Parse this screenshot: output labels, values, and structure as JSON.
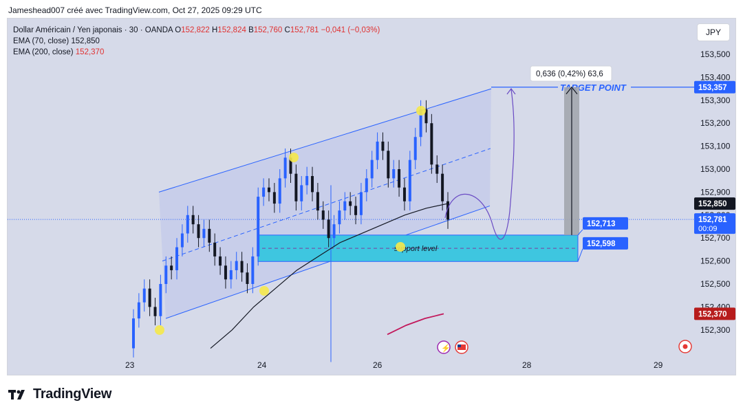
{
  "header": {
    "attribution": "Jameshead007 créé avec TradingView.com, Oct 27, 2025 09:29 UTC"
  },
  "legend": {
    "symbol": "Dollar Américain / Yen japonais · 30 · OANDA",
    "ohlc": {
      "o_label": "O",
      "o": "152,822",
      "h_label": "H",
      "h": "152,824",
      "b_label": "B",
      "b": "152,760",
      "c_label": "C",
      "c": "152,781",
      "change": "−0,041 (−0,03%)"
    },
    "ema70_label": "EMA (70, close)",
    "ema70_value": "152,850",
    "ema200_label": "EMA (200, close)",
    "ema200_value": "152,370"
  },
  "currency_button": "JPY",
  "footer": {
    "brand": "TradingView"
  },
  "colors": {
    "background": "#d6dae9",
    "channel_fill": "#c5cbea",
    "channel_line": "#2962ff",
    "support_zone": "#3ec6e0",
    "candle_up": "#2962ff",
    "candle_down": "#131722",
    "ema70": "#131722",
    "ema200": "#c2185b",
    "marker": "#f5e84a",
    "path": "#6a4bc4"
  },
  "chart_data": {
    "type": "candlestick",
    "symbol": "USDJPY",
    "timeframe": "30",
    "x_ticks": [
      "23",
      "24",
      "26",
      "28",
      "29"
    ],
    "y_ticks": [
      "153,500",
      "153,400",
      "153,300",
      "153,200",
      "153,100",
      "153,000",
      "152,900",
      "152,800",
      "152,700",
      "152,600",
      "152,500",
      "152,400",
      "152,300"
    ],
    "ylim": [
      152.2,
      153.6
    ],
    "candles_close": [
      152.35,
      152.42,
      152.48,
      152.4,
      152.36,
      152.5,
      152.58,
      152.56,
      152.66,
      152.72,
      152.8,
      152.76,
      152.7,
      152.74,
      152.68,
      152.62,
      152.58,
      152.52,
      152.56,
      152.6,
      152.55,
      152.5,
      152.62,
      152.88,
      152.92,
      152.9,
      152.85,
      152.96,
      153.05,
      152.98,
      152.86,
      152.93,
      152.97,
      152.9,
      152.82,
      152.78,
      152.7,
      152.76,
      152.82,
      152.86,
      152.84,
      152.8,
      152.9,
      152.96,
      153.04,
      153.12,
      153.08,
      152.96,
      153.0,
      152.92,
      152.86,
      153.04,
      153.14,
      153.26,
      153.2,
      153.02,
      152.98,
      152.86,
      152.78
    ],
    "ema70": [
      152.22,
      152.3,
      152.4,
      152.48,
      152.56,
      152.62,
      152.68,
      152.72,
      152.76,
      152.8,
      152.83,
      152.85
    ],
    "ema200": [
      152.28,
      152.32,
      152.35,
      152.37
    ],
    "annotations": {
      "target_label": "TARGET POINT",
      "target_price": "153,357",
      "upper_zone_price": "152,713",
      "lower_zone_price": "152,598",
      "support_label": "support level",
      "measure_label": "0,636 (0,42%) 63,6",
      "ema70_tag": "152,850",
      "last_price_tag": "152,781",
      "countdown": "00:09",
      "ema200_tag": "152,370"
    }
  }
}
